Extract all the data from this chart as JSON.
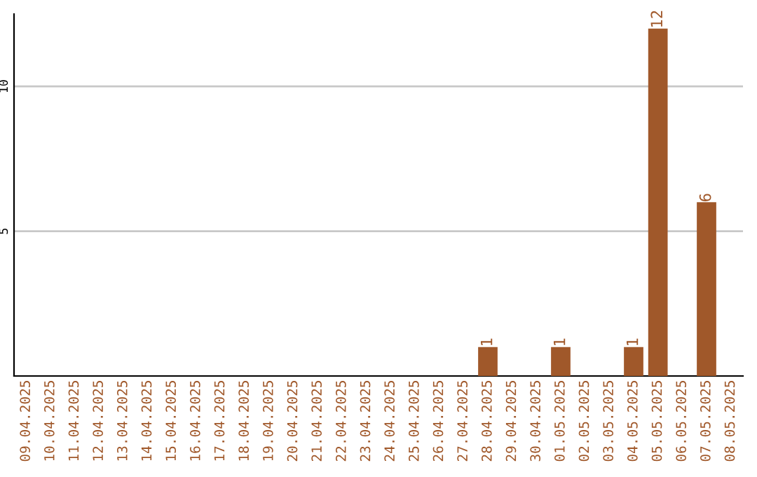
{
  "chart_data": {
    "type": "bar",
    "categories": [
      "09.04.2025",
      "10.04.2025",
      "11.04.2025",
      "12.04.2025",
      "13.04.2025",
      "14.04.2025",
      "15.04.2025",
      "16.04.2025",
      "17.04.2025",
      "18.04.2025",
      "19.04.2025",
      "20.04.2025",
      "21.04.2025",
      "22.04.2025",
      "23.04.2025",
      "24.04.2025",
      "25.04.2025",
      "26.04.2025",
      "27.04.2025",
      "28.04.2025",
      "29.04.2025",
      "30.04.2025",
      "01.05.2025",
      "02.05.2025",
      "03.05.2025",
      "04.05.2025",
      "05.05.2025",
      "06.05.2025",
      "07.05.2025",
      "08.05.2025"
    ],
    "values": [
      0,
      0,
      0,
      0,
      0,
      0,
      0,
      0,
      0,
      0,
      0,
      0,
      0,
      0,
      0,
      0,
      0,
      0,
      0,
      1,
      0,
      0,
      1,
      0,
      0,
      1,
      12,
      0,
      6,
      0
    ],
    "value_labels": [
      null,
      null,
      null,
      null,
      null,
      null,
      null,
      null,
      null,
      null,
      null,
      null,
      null,
      null,
      null,
      null,
      null,
      null,
      null,
      "1",
      null,
      null,
      "1",
      null,
      null,
      "1",
      "12",
      null,
      "6",
      null
    ],
    "color": "#a0582a",
    "ylim": [
      0,
      12.5
    ],
    "yticks": [
      5,
      10
    ],
    "grid": "y",
    "legend": false
  }
}
